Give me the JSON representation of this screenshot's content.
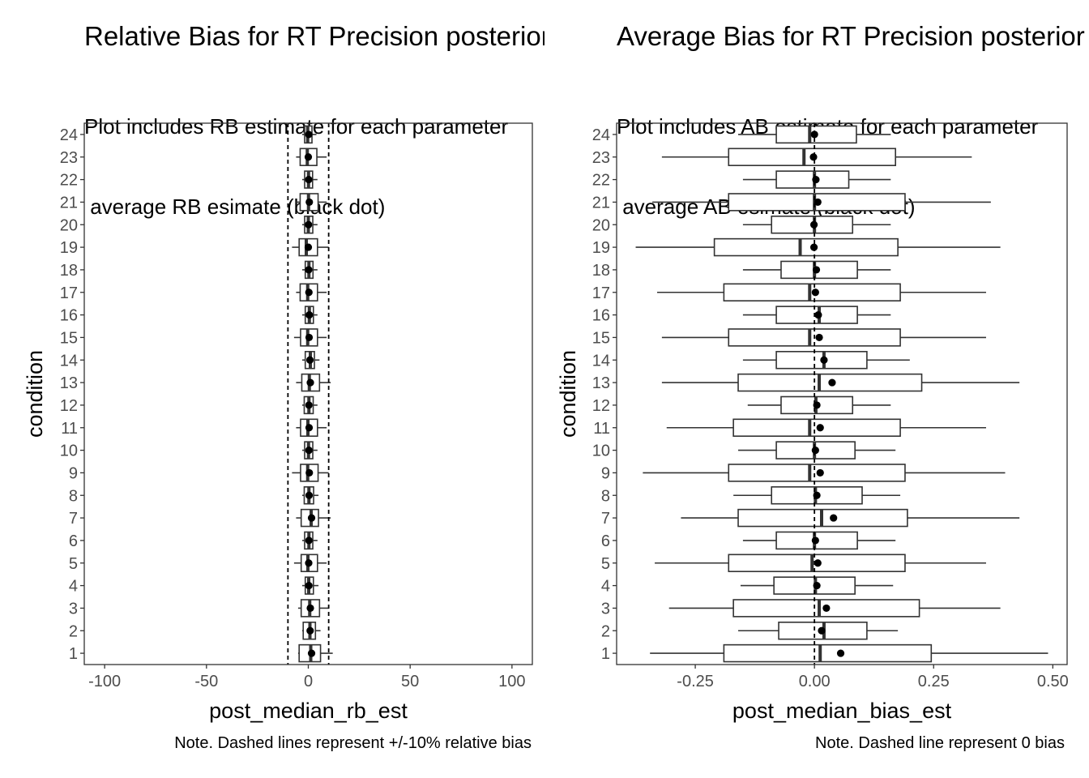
{
  "chart_data": [
    {
      "type": "boxplot",
      "orientation": "horizontal",
      "title": "Relative Bias for RT Precision posterior",
      "subtitle_lines": [
        "Plot includes RB estimate for each parameter",
        " average RB esimate (black dot)"
      ],
      "xlabel": "post_median_rb_est",
      "ylabel": "condition",
      "xlim": [
        -110,
        110
      ],
      "xticks": [
        -100,
        -50,
        0,
        50,
        100
      ],
      "xtick_labels": [
        "-100",
        "-50",
        "0",
        "50",
        "100"
      ],
      "categories": [
        "1",
        "2",
        "3",
        "4",
        "5",
        "6",
        "7",
        "8",
        "9",
        "10",
        "11",
        "12",
        "13",
        "14",
        "15",
        "16",
        "17",
        "18",
        "19",
        "20",
        "21",
        "22",
        "23",
        "24"
      ],
      "reference_lines": [
        -10,
        10
      ],
      "note": "Note. Dashed lines represent +/-10% relative bias",
      "boxes": [
        {
          "whisker_low": -5,
          "q1": -4.5,
          "median": 1.2,
          "q3": 6,
          "whisker_high": 12,
          "mean": 1.6
        },
        {
          "whisker_low": -3,
          "q1": -2.5,
          "median": 0.8,
          "q3": 3.5,
          "whisker_high": 6,
          "mean": 0.9
        },
        {
          "whisker_low": -5,
          "q1": -3.5,
          "median": 0.7,
          "q3": 5.5,
          "whisker_high": 10,
          "mean": 1.0
        },
        {
          "whisker_low": -3,
          "q1": -1.5,
          "median": 0.2,
          "q3": 2.5,
          "whisker_high": 5,
          "mean": 0.3
        },
        {
          "whisker_low": -7,
          "q1": -3.5,
          "median": -0.2,
          "q3": 4.5,
          "whisker_high": 9,
          "mean": 0.2
        },
        {
          "whisker_low": -3,
          "q1": -1.8,
          "median": 0.3,
          "q3": 2.2,
          "whisker_high": 4.5,
          "mean": 0.3
        },
        {
          "whisker_low": -6,
          "q1": -3.5,
          "median": 1.4,
          "q3": 5,
          "whisker_high": 11,
          "mean": 1.6
        },
        {
          "whisker_low": -3,
          "q1": -2,
          "median": 0.3,
          "q3": 2.6,
          "whisker_high": 5,
          "mean": 0.4
        },
        {
          "whisker_low": -8,
          "q1": -3.8,
          "median": -0.3,
          "q3": 4.8,
          "whisker_high": 10,
          "mean": 0.5
        },
        {
          "whisker_low": -3,
          "q1": -1.8,
          "median": 0.1,
          "q3": 2.2,
          "whisker_high": 4.5,
          "mean": 0.3
        },
        {
          "whisker_low": -6,
          "q1": -3.8,
          "median": -0.2,
          "q3": 4.5,
          "whisker_high": 9,
          "mean": 0.4
        },
        {
          "whisker_low": -3,
          "q1": -2,
          "median": 0.3,
          "q3": 2.4,
          "whisker_high": 4.5,
          "mean": 0.3
        },
        {
          "whisker_low": -6,
          "q1": -3.2,
          "median": 0.5,
          "q3": 5.5,
          "whisker_high": 11,
          "mean": 1.0
        },
        {
          "whisker_low": -3,
          "q1": -1.5,
          "median": 1.0,
          "q3": 3,
          "whisker_high": 5.5,
          "mean": 0.8
        },
        {
          "whisker_low": -7,
          "q1": -3.8,
          "median": -0.3,
          "q3": 4.5,
          "whisker_high": 9,
          "mean": 0.4
        },
        {
          "whisker_low": -3,
          "q1": -1.5,
          "median": 0.5,
          "q3": 2.5,
          "whisker_high": 4.5,
          "mean": 0.5
        },
        {
          "whisker_low": -6,
          "q1": -4,
          "median": -0.3,
          "q3": 4.5,
          "whisker_high": 9,
          "mean": 0.3
        },
        {
          "whisker_low": -3,
          "q1": -1.5,
          "median": 0.3,
          "q3": 2.3,
          "whisker_high": 4.5,
          "mean": 0.2
        },
        {
          "whisker_low": -8,
          "q1": -4.5,
          "median": -1.0,
          "q3": 4.5,
          "whisker_high": 10,
          "mean": 0.0
        },
        {
          "whisker_low": -3,
          "q1": -1.8,
          "median": 0.0,
          "q3": 2.2,
          "whisker_high": 4.5,
          "mean": 0.1
        },
        {
          "whisker_low": -6,
          "q1": -4,
          "median": 0.1,
          "q3": 4.8,
          "whisker_high": 9,
          "mean": 0.5
        },
        {
          "whisker_low": -3,
          "q1": -1.8,
          "median": 0.1,
          "q3": 2.1,
          "whisker_high": 4.5,
          "mean": 0.2
        },
        {
          "whisker_low": -6,
          "q1": -4,
          "median": -0.5,
          "q3": 4.2,
          "whisker_high": 9,
          "mean": 0.0
        },
        {
          "whisker_low": -3,
          "q1": -1.8,
          "median": -0.3,
          "q3": 1.8,
          "whisker_high": 4,
          "mean": 0.2
        }
      ]
    },
    {
      "type": "boxplot",
      "orientation": "horizontal",
      "title": "Average Bias for RT Precision posterior",
      "subtitle_lines": [
        "Plot includes AB estimate for each parameter",
        " average AB esimate (black dot)"
      ],
      "xlabel": "post_median_bias_est",
      "ylabel": "condition",
      "xlim": [
        -0.415,
        0.53
      ],
      "xticks": [
        -0.25,
        0,
        0.25,
        0.5
      ],
      "xtick_labels": [
        "-0.25",
        "0.00",
        "0.25",
        "0.50"
      ],
      "categories": [
        "1",
        "2",
        "3",
        "4",
        "5",
        "6",
        "7",
        "8",
        "9",
        "10",
        "11",
        "12",
        "13",
        "14",
        "15",
        "16",
        "17",
        "18",
        "19",
        "20",
        "21",
        "22",
        "23",
        "24"
      ],
      "reference_lines": [
        0
      ],
      "note": "Note. Dashed line represent 0 bias",
      "boxes": [
        {
          "whisker_low": -0.345,
          "q1": -0.19,
          "median": 0.012,
          "q3": 0.245,
          "whisker_high": 0.49,
          "mean": 0.055
        },
        {
          "whisker_low": -0.16,
          "q1": -0.075,
          "median": 0.02,
          "q3": 0.11,
          "whisker_high": 0.175,
          "mean": 0.015
        },
        {
          "whisker_low": -0.305,
          "q1": -0.17,
          "median": 0.01,
          "q3": 0.22,
          "whisker_high": 0.39,
          "mean": 0.025
        },
        {
          "whisker_low": -0.155,
          "q1": -0.085,
          "median": 0.002,
          "q3": 0.085,
          "whisker_high": 0.165,
          "mean": 0.005
        },
        {
          "whisker_low": -0.335,
          "q1": -0.18,
          "median": -0.005,
          "q3": 0.19,
          "whisker_high": 0.36,
          "mean": 0.007
        },
        {
          "whisker_low": -0.15,
          "q1": -0.08,
          "median": 0.0,
          "q3": 0.09,
          "whisker_high": 0.17,
          "mean": 0.002
        },
        {
          "whisker_low": -0.28,
          "q1": -0.16,
          "median": 0.015,
          "q3": 0.195,
          "whisker_high": 0.43,
          "mean": 0.04
        },
        {
          "whisker_low": -0.17,
          "q1": -0.09,
          "median": 0.002,
          "q3": 0.1,
          "whisker_high": 0.18,
          "mean": 0.005
        },
        {
          "whisker_low": -0.36,
          "q1": -0.18,
          "median": -0.01,
          "q3": 0.19,
          "whisker_high": 0.4,
          "mean": 0.012
        },
        {
          "whisker_low": -0.16,
          "q1": -0.08,
          "median": 0.0,
          "q3": 0.085,
          "whisker_high": 0.17,
          "mean": 0.002
        },
        {
          "whisker_low": -0.31,
          "q1": -0.17,
          "median": -0.01,
          "q3": 0.18,
          "whisker_high": 0.36,
          "mean": 0.012
        },
        {
          "whisker_low": -0.14,
          "q1": -0.07,
          "median": 0.003,
          "q3": 0.08,
          "whisker_high": 0.16,
          "mean": 0.005
        },
        {
          "whisker_low": -0.32,
          "q1": -0.16,
          "median": 0.01,
          "q3": 0.225,
          "whisker_high": 0.43,
          "mean": 0.037
        },
        {
          "whisker_low": -0.15,
          "q1": -0.08,
          "median": 0.02,
          "q3": 0.11,
          "whisker_high": 0.2,
          "mean": 0.02
        },
        {
          "whisker_low": -0.32,
          "q1": -0.18,
          "median": -0.01,
          "q3": 0.18,
          "whisker_high": 0.36,
          "mean": 0.01
        },
        {
          "whisker_low": -0.15,
          "q1": -0.08,
          "median": 0.01,
          "q3": 0.09,
          "whisker_high": 0.16,
          "mean": 0.008
        },
        {
          "whisker_low": -0.33,
          "q1": -0.19,
          "median": -0.01,
          "q3": 0.18,
          "whisker_high": 0.36,
          "mean": 0.002
        },
        {
          "whisker_low": -0.15,
          "q1": -0.07,
          "median": 0.0,
          "q3": 0.09,
          "whisker_high": 0.16,
          "mean": 0.004
        },
        {
          "whisker_low": -0.375,
          "q1": -0.21,
          "median": -0.03,
          "q3": 0.175,
          "whisker_high": 0.39,
          "mean": -0.001
        },
        {
          "whisker_low": -0.15,
          "q1": -0.09,
          "median": 0.0,
          "q3": 0.08,
          "whisker_high": 0.16,
          "mean": -0.001
        },
        {
          "whisker_low": -0.34,
          "q1": -0.18,
          "median": 0.0,
          "q3": 0.19,
          "whisker_high": 0.37,
          "mean": 0.007
        },
        {
          "whisker_low": -0.15,
          "q1": -0.08,
          "median": 0.0,
          "q3": 0.072,
          "whisker_high": 0.16,
          "mean": 0.003
        },
        {
          "whisker_low": -0.32,
          "q1": -0.18,
          "median": -0.022,
          "q3": 0.17,
          "whisker_high": 0.33,
          "mean": -0.002
        },
        {
          "whisker_low": -0.16,
          "q1": -0.08,
          "median": -0.01,
          "q3": 0.088,
          "whisker_high": 0.16,
          "mean": 0.0
        }
      ]
    }
  ]
}
